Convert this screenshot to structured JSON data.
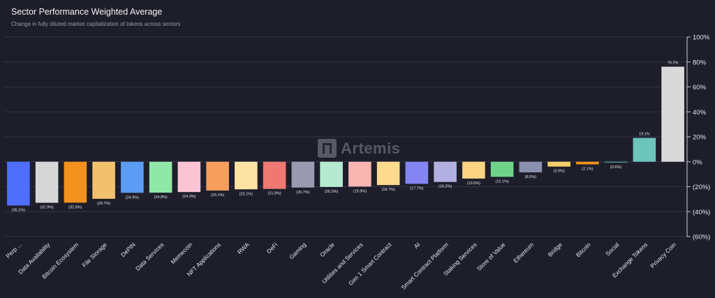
{
  "header": {
    "title": "Sector Performance Weighted Average",
    "subtitle": "Change in fully diluted market capitalization of tokens across sectors"
  },
  "watermark": {
    "text": "Artemis",
    "icon": "artemis-logo-icon"
  },
  "chart_data": {
    "type": "bar",
    "title": "Sector Performance Weighted Average",
    "subtitle": "Change in fully diluted market capitalization of tokens across sectors",
    "categories": [
      "Perp ...",
      "Data Availability",
      "Bitcoin Ecosystem",
      "File Storage",
      "DePIN",
      "Data Services",
      "Memecoin",
      "NFT Applications",
      "RWA",
      "DeFi",
      "Gaming",
      "Oracle",
      "Utilities and Services",
      "Gen 1 Smart Contract",
      "AI",
      "Smart Contract Platform",
      "Staking Services",
      "Store of Value",
      "Ethereum",
      "Bridge",
      "Bitcoin",
      "Social",
      "Exchange Tokens",
      "Privacy Coin"
    ],
    "values": [
      -35.1,
      -32.9,
      -32.8,
      -29.7,
      -24.9,
      -24.8,
      -24.3,
      -23.1,
      -22.1,
      -21.8,
      -20.7,
      -20.2,
      -19.9,
      -18.7,
      -17.7,
      -16.2,
      -13.5,
      -12.1,
      -8.5,
      -3.9,
      -2.1,
      -0.6,
      19.1,
      76.2
    ],
    "value_labels": [
      "(35.1%)",
      "(32.9%)",
      "(32.8%)",
      "(29.7%)",
      "(24.9%)",
      "(24.8%)",
      "(24.3%)",
      "(23.1%)",
      "(22.1%)",
      "(21.8%)",
      "(20.7%)",
      "(20.2%)",
      "(19.9%)",
      "(18.7%)",
      "(17.7%)",
      "(16.2%)",
      "(13.5%)",
      "(12.1%)",
      "(8.5%)",
      "(3.9%)",
      "(2.1%)",
      "(0.6%)",
      "19.1%",
      "76.2%"
    ],
    "colors": [
      "#4f6dfb",
      "#d6d6d6",
      "#f2911d",
      "#f2c16e",
      "#5b9cf5",
      "#8fe8a8",
      "#fbc4d4",
      "#f79e5e",
      "#fce3a3",
      "#ef7872",
      "#9a9ab0",
      "#b5ead0",
      "#f8b5b1",
      "#fcdb8e",
      "#8485f2",
      "#b1b0e0",
      "#fcd383",
      "#6fd38a",
      "#8b8fb0",
      "#f5cd6a",
      "#f0941f",
      "#55b9b2",
      "#6dc4bb",
      "#d9d9d9"
    ],
    "ylim": [
      -60,
      100
    ],
    "yticks": [
      100,
      80,
      60,
      40,
      20,
      0,
      -20,
      -40,
      -60
    ],
    "ytick_labels": [
      "100%",
      "80%",
      "60%",
      "40%",
      "20%",
      "0%",
      "(20%)",
      "(40%)",
      "(60%)"
    ],
    "y_axis_side": "right",
    "grid": true,
    "legend": "none"
  }
}
